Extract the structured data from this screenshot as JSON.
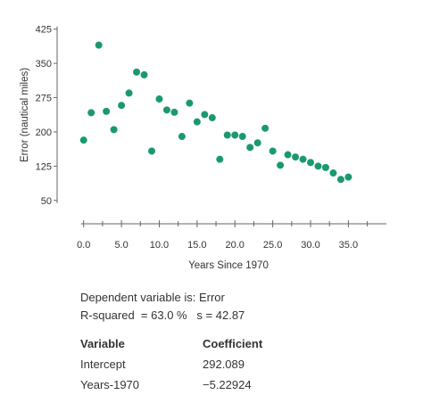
{
  "chart_data": {
    "type": "scatter",
    "xlabel": "Years Since 1970",
    "ylabel": "Error (nautical miles)",
    "xlim": [
      -1.5,
      40.5
    ],
    "ylim": [
      30,
      440
    ],
    "x_ticks": [
      "0.0",
      "5.0",
      "10.0",
      "15.0",
      "20.0",
      "25.0",
      "30.0",
      "35.0"
    ],
    "y_ticks": [
      "50",
      "125",
      "200",
      "275",
      "350",
      "425"
    ],
    "point_color": "#1a9970",
    "grid": false,
    "points": [
      {
        "x": 0,
        "y": 182
      },
      {
        "x": 1,
        "y": 242
      },
      {
        "x": 2,
        "y": 390
      },
      {
        "x": 3,
        "y": 245
      },
      {
        "x": 4,
        "y": 205
      },
      {
        "x": 5,
        "y": 258
      },
      {
        "x": 6,
        "y": 285
      },
      {
        "x": 7,
        "y": 331
      },
      {
        "x": 8,
        "y": 325
      },
      {
        "x": 9,
        "y": 158
      },
      {
        "x": 10,
        "y": 272
      },
      {
        "x": 11,
        "y": 248
      },
      {
        "x": 12,
        "y": 243
      },
      {
        "x": 13,
        "y": 190
      },
      {
        "x": 14,
        "y": 263
      },
      {
        "x": 15,
        "y": 222
      },
      {
        "x": 16,
        "y": 238
      },
      {
        "x": 17,
        "y": 231
      },
      {
        "x": 18,
        "y": 140
      },
      {
        "x": 19,
        "y": 193
      },
      {
        "x": 20,
        "y": 193
      },
      {
        "x": 21,
        "y": 190
      },
      {
        "x": 22,
        "y": 166
      },
      {
        "x": 23,
        "y": 176
      },
      {
        "x": 24,
        "y": 208
      },
      {
        "x": 25,
        "y": 158
      },
      {
        "x": 26,
        "y": 127
      },
      {
        "x": 27,
        "y": 150
      },
      {
        "x": 28,
        "y": 145
      },
      {
        "x": 29,
        "y": 140
      },
      {
        "x": 30,
        "y": 133
      },
      {
        "x": 31,
        "y": 125
      },
      {
        "x": 32,
        "y": 122
      },
      {
        "x": 33,
        "y": 110
      },
      {
        "x": 34,
        "y": 96
      },
      {
        "x": 35,
        "y": 101
      }
    ]
  },
  "regression": {
    "dependent_line": "Dependent variable is: Error",
    "rsq_line": "R-squared  = 63.0 %   s = 42.87",
    "variable_header": "Variable",
    "coefficient_header": "Coefficient",
    "rows": [
      {
        "variable": "Intercept",
        "coefficient": "292.089"
      },
      {
        "variable": "Years-1970",
        "coefficient": "−5.22924"
      }
    ]
  }
}
